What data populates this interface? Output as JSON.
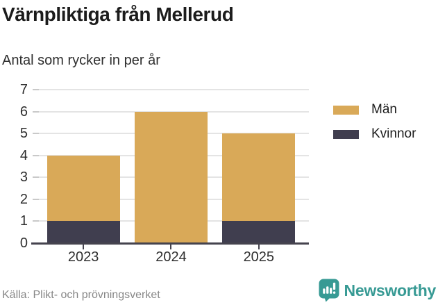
{
  "header": {
    "title": "Värnpliktiga från Mellerud",
    "subtitle": "Antal som rycker in per år"
  },
  "chart_data": {
    "type": "bar",
    "stacked": true,
    "title": "Värnpliktiga från Mellerud",
    "subtitle": "Antal som rycker in per år",
    "categories": [
      "2023",
      "2024",
      "2025"
    ],
    "series": [
      {
        "name": "Kvinnor",
        "color": "#403e4f",
        "values": [
          1,
          0,
          1
        ]
      },
      {
        "name": "Män",
        "color": "#d9a958",
        "values": [
          3,
          6,
          4
        ]
      }
    ],
    "totals": [
      4,
      6,
      5
    ],
    "xlabel": "",
    "ylabel": "",
    "ylim": [
      0,
      7
    ],
    "yticks": [
      0,
      1,
      2,
      3,
      4,
      5,
      6,
      7
    ],
    "grid": true,
    "legend_position": "right",
    "legend": [
      {
        "label": "Män",
        "color": "#d9a958"
      },
      {
        "label": "Kvinnor",
        "color": "#403e4f"
      }
    ]
  },
  "footer": {
    "source": "Källa: Plikt- och prövningsverket",
    "brand": "Newsworthy"
  },
  "colors": {
    "man": "#d9a958",
    "kvinnor": "#403e4f",
    "teal": "#379a94",
    "grid": "#e4e4e4",
    "tickmark": "#c9c9c9",
    "axis": "#45434e",
    "title": "#1c1c1c",
    "text": "#2e2e2e",
    "muted": "#878787"
  }
}
